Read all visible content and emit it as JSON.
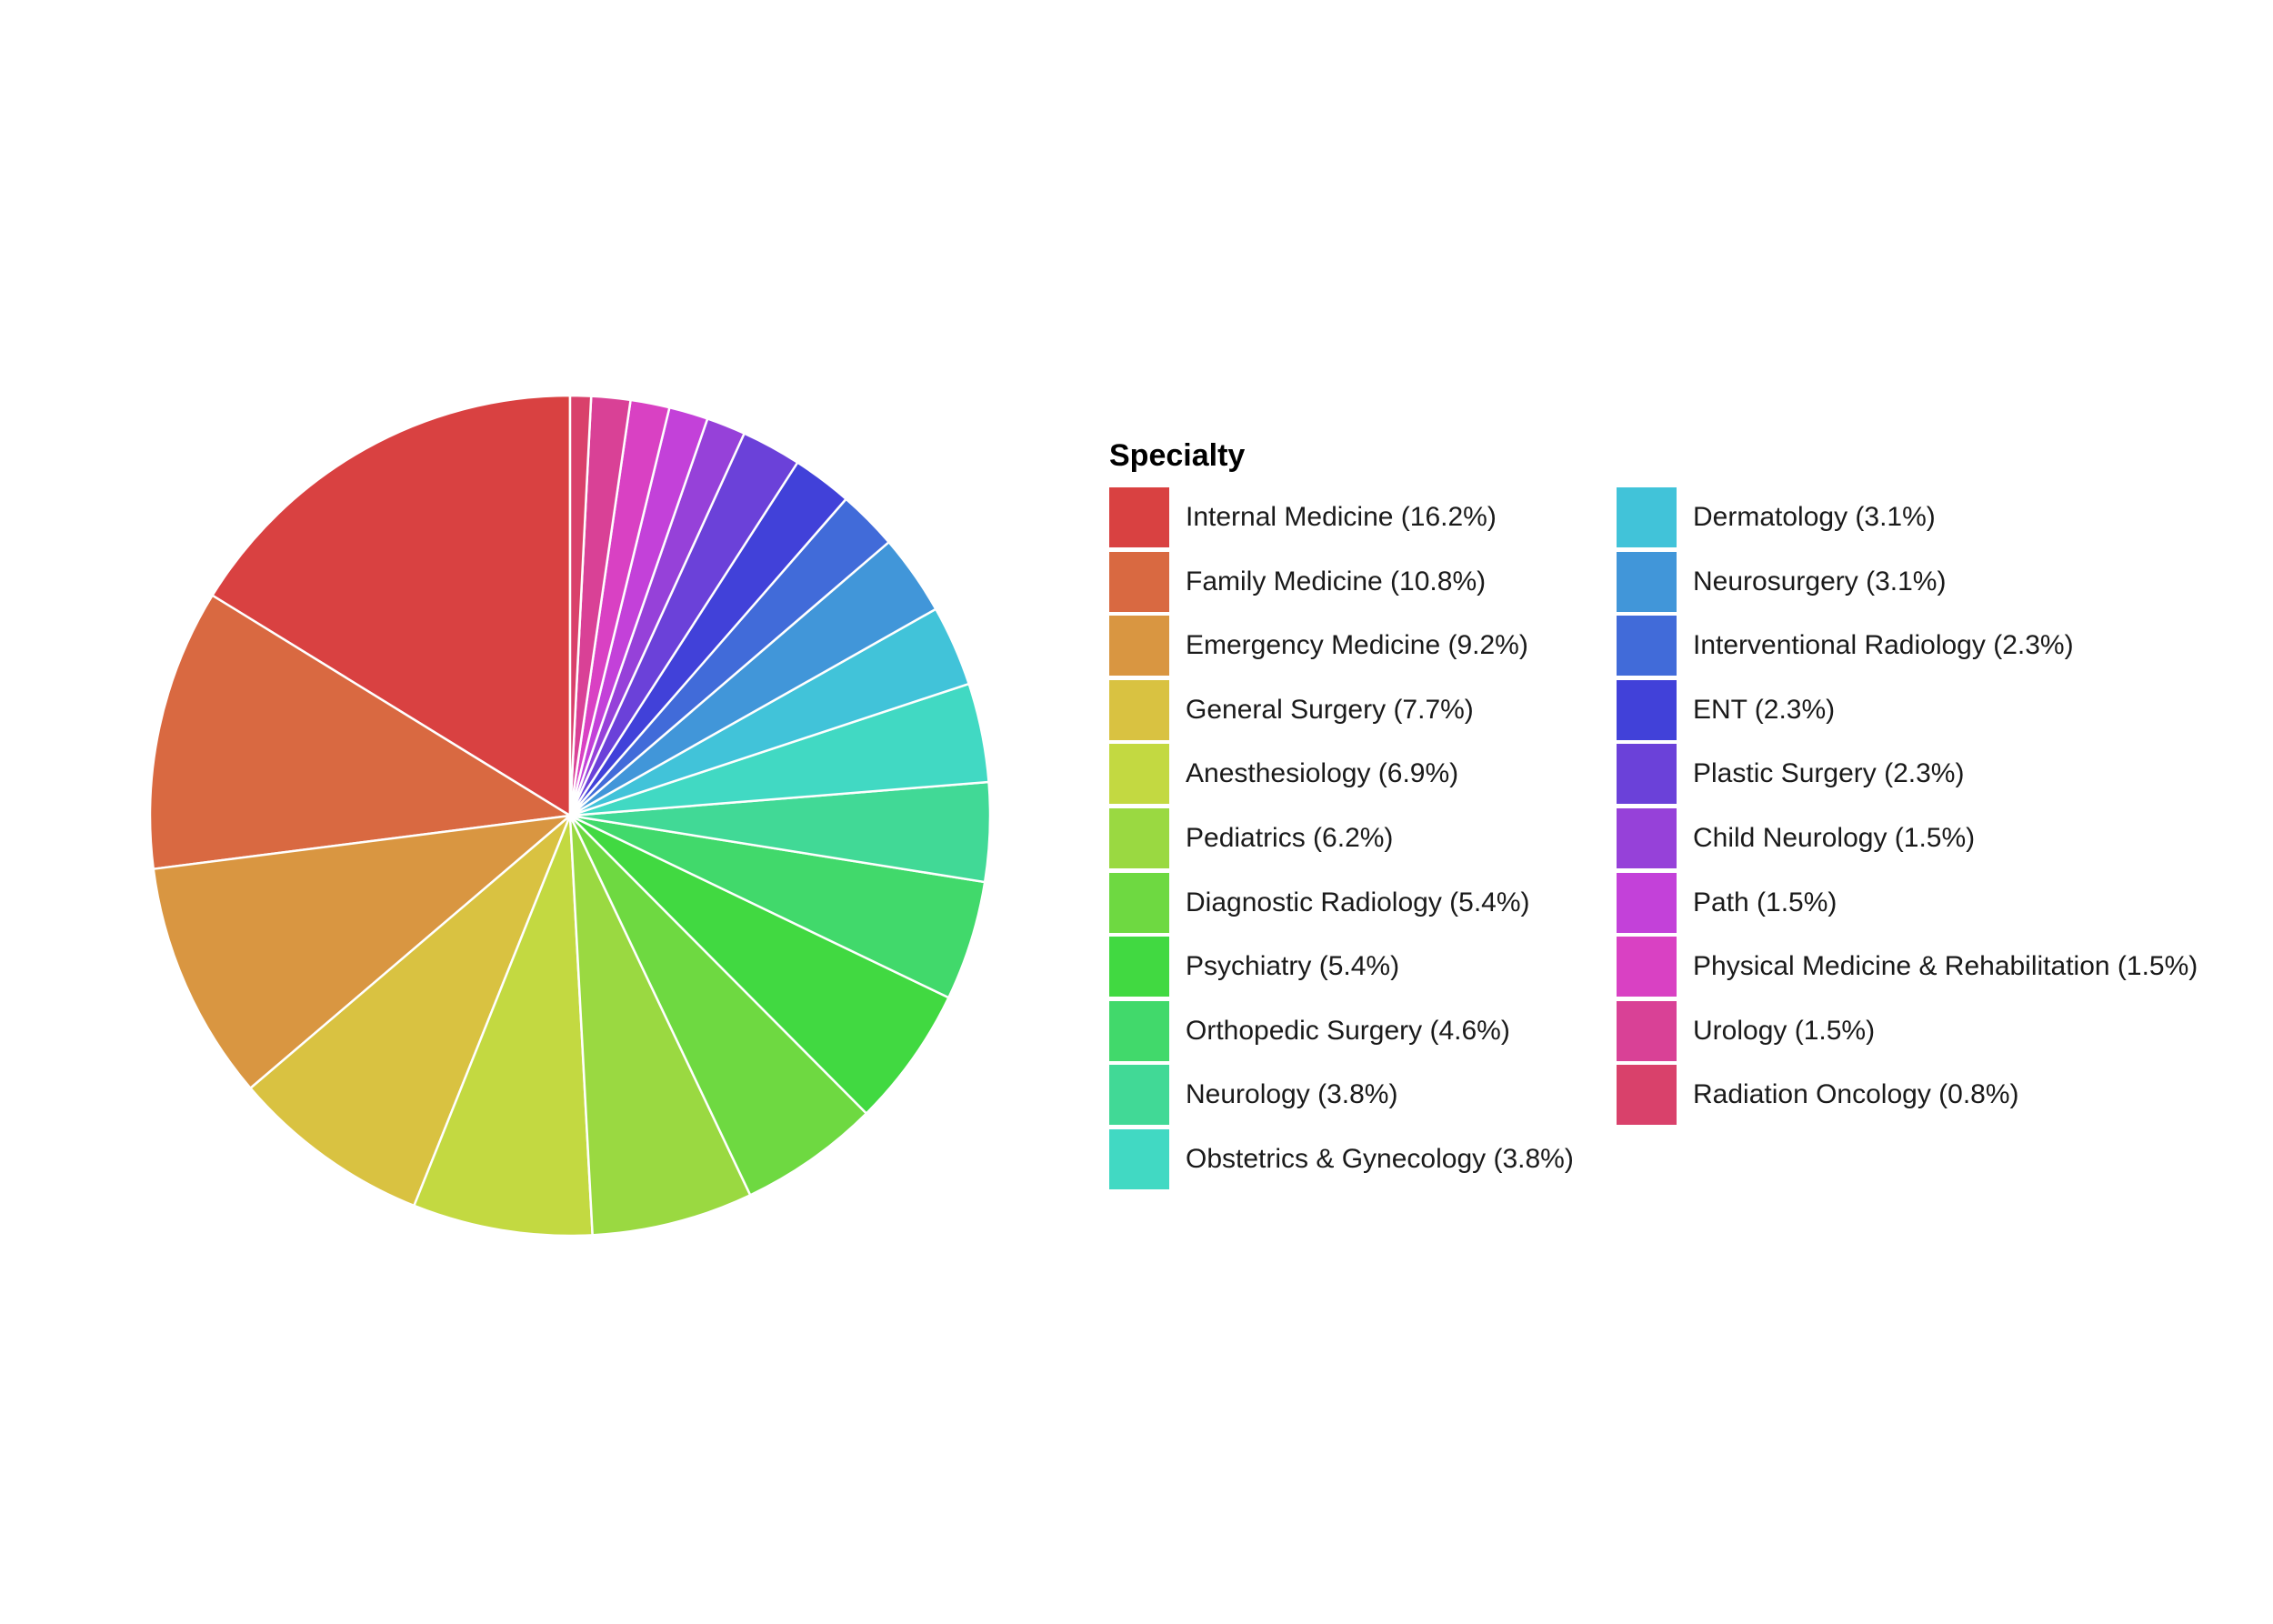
{
  "chart_data": {
    "type": "pie",
    "title": "",
    "legend_title": "Specialty",
    "legend_placement": "right",
    "grid": false,
    "slices": [
      {
        "label": "Internal Medicine",
        "value": 16.2,
        "legend_text": "Internal Medicine (16.2%)",
        "color": "#D94141"
      },
      {
        "label": "Family Medicine",
        "value": 10.8,
        "legend_text": "Family Medicine (10.8%)",
        "color": "#D96941"
      },
      {
        "label": "Emergency Medicine",
        "value": 9.2,
        "legend_text": "Emergency Medicine (9.2%)",
        "color": "#D99641"
      },
      {
        "label": "General Surgery",
        "value": 7.7,
        "legend_text": "General Surgery (7.7%)",
        "color": "#D9C241"
      },
      {
        "label": "Anesthesiology",
        "value": 6.9,
        "legend_text": "Anesthesiology (6.9%)",
        "color": "#C3D941"
      },
      {
        "label": "Pediatrics",
        "value": 6.2,
        "legend_text": "Pediatrics (6.2%)",
        "color": "#9AD941"
      },
      {
        "label": "Diagnostic Radiology",
        "value": 5.4,
        "legend_text": "Diagnostic Radiology (5.4%)",
        "color": "#6ED941"
      },
      {
        "label": "Psychiatry",
        "value": 5.4,
        "legend_text": "Psychiatry (5.4%)",
        "color": "#41D941"
      },
      {
        "label": "Orthopedic Surgery",
        "value": 4.6,
        "legend_text": "Orthopedic Surgery (4.6%)",
        "color": "#41D96B"
      },
      {
        "label": "Neurology",
        "value": 3.8,
        "legend_text": "Neurology (3.8%)",
        "color": "#41D996"
      },
      {
        "label": "Obstetrics & Gynecology",
        "value": 3.8,
        "legend_text": "Obstetrics & Gynecology (3.8%)",
        "color": "#41D9C3"
      },
      {
        "label": "Dermatology",
        "value": 3.1,
        "legend_text": "Dermatology (3.1%)",
        "color": "#41C3D9"
      },
      {
        "label": "Neurosurgery",
        "value": 3.1,
        "legend_text": "Neurosurgery (3.1%)",
        "color": "#4196D9"
      },
      {
        "label": "Interventional Radiology",
        "value": 2.3,
        "legend_text": "Interventional Radiology (2.3%)",
        "color": "#416BD9"
      },
      {
        "label": "ENT",
        "value": 2.3,
        "legend_text": "ENT (2.3%)",
        "color": "#4141D9"
      },
      {
        "label": "Plastic Surgery",
        "value": 2.3,
        "legend_text": "Plastic Surgery (2.3%)",
        "color": "#6B41D9"
      },
      {
        "label": "Child Neurology",
        "value": 1.5,
        "legend_text": "Child Neurology (1.5%)",
        "color": "#9641D9"
      },
      {
        "label": "Path",
        "value": 1.5,
        "legend_text": "Path (1.5%)",
        "color": "#C341D9"
      },
      {
        "label": "Physical Medicine & Rehabilitation",
        "value": 1.5,
        "legend_text": "Physical Medicine & Rehabilitation (1.5%)",
        "color": "#D941C3"
      },
      {
        "label": "Urology",
        "value": 1.5,
        "legend_text": "Urology (1.5%)",
        "color": "#D94196"
      },
      {
        "label": "Radiation Oncology",
        "value": 0.8,
        "legend_text": "Radiation Oncology (0.8%)",
        "color": "#D9416B"
      }
    ]
  }
}
